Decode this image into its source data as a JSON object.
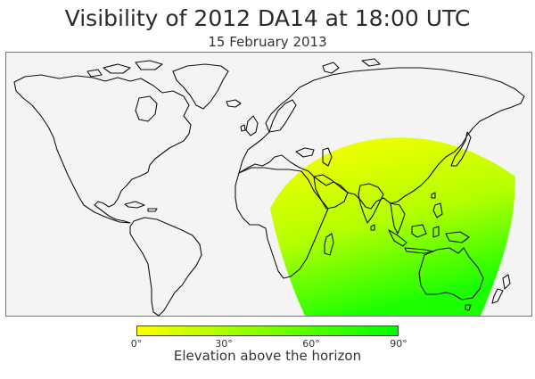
{
  "title": "Visibility of 2012 DA14 at 18:00 UTC",
  "subtitle": "15 February 2013",
  "colorbar": {
    "label": "Elevation above the horizon",
    "min_color": "#ffff00",
    "max_color": "#00ff00",
    "ticks": [
      "0°",
      "30°",
      "60°",
      "90°"
    ]
  },
  "map": {
    "ocean_color": "#f4f4f4",
    "land_color": "#ffffff",
    "coast_color": "#111111"
  }
}
